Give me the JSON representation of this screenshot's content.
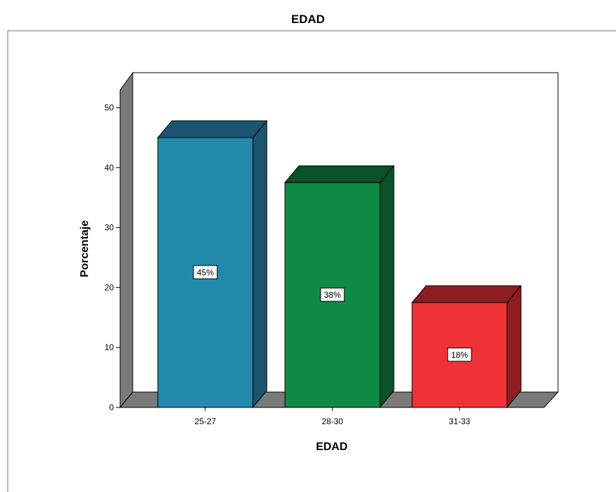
{
  "chart_data": {
    "type": "bar",
    "title": "EDAD",
    "xlabel": "EDAD",
    "ylabel": "Porcentaje",
    "categories": [
      "25-27",
      "28-30",
      "31-33"
    ],
    "values": [
      45,
      37.5,
      17.5
    ],
    "data_labels": [
      "45%",
      "38%",
      "18%"
    ],
    "ylim": [
      0,
      50
    ],
    "yticks": [
      "0",
      "10",
      "20",
      "30",
      "40",
      "50"
    ],
    "colors": [
      "#2389ab",
      "#0f8a45",
      "#ef3238"
    ],
    "side_colors": [
      "#1a5470",
      "#0a5028",
      "#8c1e22"
    ],
    "top_colors": [
      "#1a5470",
      "#0a5028",
      "#8c1e22"
    ],
    "grid": false,
    "legend": "none",
    "style": "3d"
  }
}
